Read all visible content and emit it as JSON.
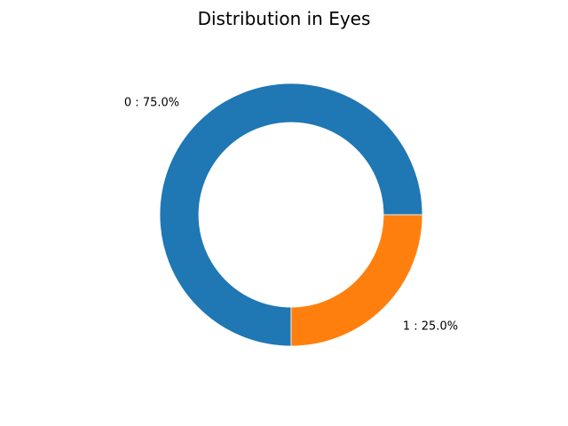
{
  "chart_data": {
    "type": "pie",
    "title": "Distribution in Eyes",
    "donut": true,
    "start_angle_deg": 0,
    "direction": "counterclockwise",
    "slices": [
      {
        "category": "0",
        "value": 75.0,
        "label": "0 : 75.0%",
        "color": "#1f77b4"
      },
      {
        "category": "1",
        "value": 25.0,
        "label": "1 : 25.0%",
        "color": "#ff7f0e"
      }
    ]
  }
}
